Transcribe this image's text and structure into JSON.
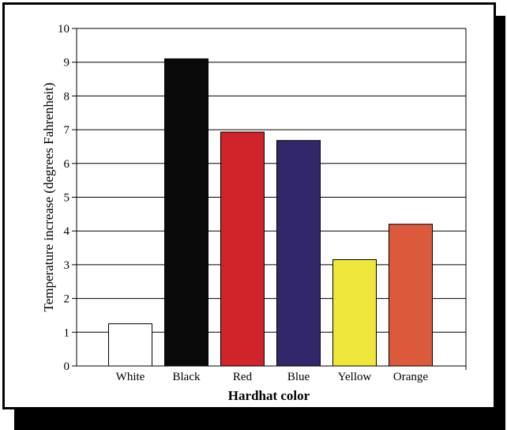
{
  "chart_data": {
    "type": "bar",
    "categories": [
      "White",
      "Black",
      "Red",
      "Blue",
      "Yellow",
      "Orange"
    ],
    "values": [
      1.25,
      9.1,
      6.93,
      6.68,
      3.15,
      4.2
    ],
    "colors": [
      "#ffffff",
      "#0a0a0a",
      "#d0232a",
      "#33276b",
      "#eee63a",
      "#dc5a3c"
    ],
    "xlabel": "Hardhat color",
    "ylabel": "Temperature increase (degrees Fahrenheit)",
    "ylim": [
      0,
      10
    ],
    "yticks": [
      "0",
      "1",
      "2",
      "3",
      "4",
      "5",
      "6",
      "7",
      "8",
      "9",
      "10"
    ],
    "grid": true
  }
}
